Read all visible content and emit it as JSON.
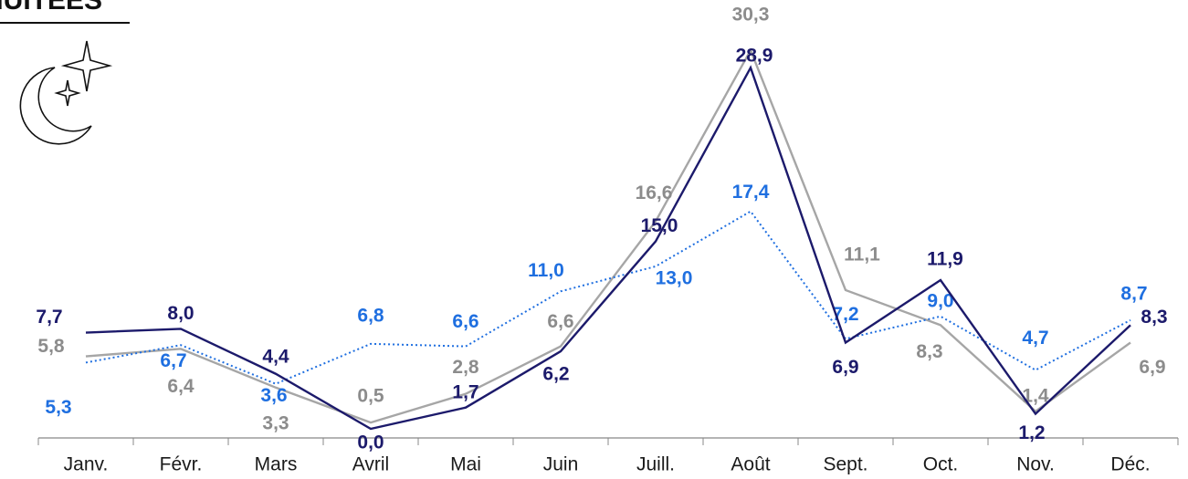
{
  "chart_data": {
    "type": "line",
    "title": "NUITEES",
    "categories": [
      "Janv.",
      "Févr.",
      "Mars",
      "Avril",
      "Mai",
      "Juin",
      "Juill.",
      "Août",
      "Sept.",
      "Oct.",
      "Nov.",
      "Déc."
    ],
    "series": [
      {
        "color": "#a6a6a6",
        "style": "solid",
        "values": [
          5.8,
          6.4,
          3.3,
          0.5,
          2.8,
          6.6,
          16.6,
          30.3,
          11.1,
          8.3,
          1.4,
          6.9
        ],
        "value_labels": [
          "5,8",
          "6,4",
          "3,3",
          "0,5",
          "2,8",
          "6,6",
          "16,6",
          "30,3",
          "11,1",
          "8,3",
          "1,4",
          "6,9"
        ]
      },
      {
        "color": "#1f6fe0",
        "style": "dotted",
        "values": [
          5.3,
          6.7,
          3.6,
          6.8,
          6.6,
          11.0,
          13.0,
          17.4,
          7.2,
          9.0,
          4.7,
          8.7
        ],
        "value_labels": [
          "5,3",
          "6,7",
          "3,6",
          "6,8",
          "6,6",
          "11,0",
          "13,0",
          "17,4",
          "7,2",
          "9,0",
          "4,7",
          "8,7"
        ]
      },
      {
        "color": "#1c1a6b",
        "style": "solid",
        "values": [
          7.7,
          8.0,
          4.4,
          0.0,
          1.7,
          6.2,
          15.0,
          28.9,
          6.9,
          11.9,
          1.2,
          8.3
        ],
        "value_labels": [
          "7,7",
          "8,0",
          "4,4",
          "0,0",
          "1,7",
          "6,2",
          "15,0",
          "28,9",
          "6,9",
          "11,9",
          "1,2",
          "8,3"
        ]
      }
    ]
  }
}
